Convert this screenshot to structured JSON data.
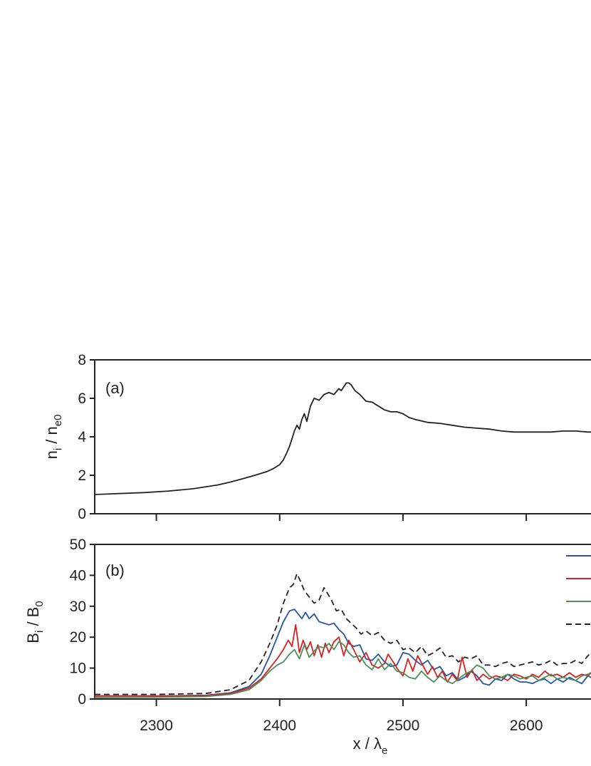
{
  "chart_data": [
    {
      "type": "line",
      "panel_label": "(a)",
      "ylabel": {
        "main": "n",
        "sub": "i",
        "mid": " / n",
        "sub2": "e0"
      },
      "xlim": [
        2250,
        2660
      ],
      "ylim": [
        0,
        8
      ],
      "yticks": [
        0,
        2,
        4,
        6,
        8
      ],
      "xticks": [
        2300,
        2400,
        2500,
        2600
      ],
      "series": [
        {
          "color": "#222222",
          "dash": "",
          "x": [
            2250,
            2270,
            2290,
            2310,
            2330,
            2350,
            2360,
            2370,
            2380,
            2390,
            2395,
            2400,
            2403,
            2406,
            2408,
            2410,
            2412,
            2414,
            2416,
            2418,
            2420,
            2422,
            2425,
            2428,
            2432,
            2436,
            2440,
            2444,
            2448,
            2450,
            2452,
            2454,
            2456,
            2458,
            2461,
            2465,
            2470,
            2475,
            2480,
            2485,
            2490,
            2495,
            2500,
            2505,
            2510,
            2520,
            2530,
            2540,
            2550,
            2560,
            2570,
            2580,
            2590,
            2600,
            2610,
            2620,
            2630,
            2640,
            2650,
            2660
          ],
          "y": [
            1.0,
            1.05,
            1.1,
            1.18,
            1.3,
            1.5,
            1.65,
            1.82,
            2.0,
            2.2,
            2.35,
            2.55,
            2.8,
            3.2,
            3.5,
            3.9,
            4.3,
            4.6,
            4.4,
            4.9,
            5.2,
            4.8,
            5.6,
            6.0,
            5.9,
            6.2,
            6.3,
            6.2,
            6.5,
            6.4,
            6.6,
            6.8,
            6.8,
            6.7,
            6.4,
            6.2,
            5.85,
            5.8,
            5.6,
            5.4,
            5.3,
            5.3,
            5.2,
            5.0,
            4.9,
            4.75,
            4.7,
            4.6,
            4.5,
            4.45,
            4.4,
            4.3,
            4.25,
            4.25,
            4.25,
            4.25,
            4.3,
            4.3,
            4.25,
            4.25
          ]
        }
      ]
    },
    {
      "type": "line",
      "panel_label": "(b)",
      "xlabel": {
        "main": "x / ",
        "greek": "λ",
        "sub": "e"
      },
      "ylabel": {
        "main": "B",
        "sub": "i",
        "mid": " / B",
        "sub2": "0"
      },
      "xlim": [
        2250,
        2660
      ],
      "ylim": [
        0,
        50
      ],
      "yticks": [
        0,
        10,
        20,
        30,
        40,
        50
      ],
      "xticks": [
        2300,
        2400,
        2500,
        2600
      ],
      "series": [
        {
          "color": "#2255a4",
          "dash": "",
          "x": [
            2250,
            2300,
            2340,
            2360,
            2375,
            2385,
            2392,
            2398,
            2403,
            2408,
            2412,
            2415,
            2418,
            2421,
            2424,
            2428,
            2432,
            2436,
            2440,
            2444,
            2448,
            2452,
            2456,
            2460,
            2465,
            2470,
            2475,
            2480,
            2485,
            2490,
            2495,
            2500,
            2505,
            2510,
            2515,
            2520,
            2525,
            2530,
            2535,
            2540,
            2545,
            2550,
            2555,
            2560,
            2565,
            2570,
            2575,
            2580,
            2585,
            2590,
            2595,
            2600,
            2605,
            2610,
            2615,
            2620,
            2625,
            2630,
            2635,
            2640,
            2645,
            2650,
            2655,
            2660
          ],
          "y": [
            1.0,
            1.0,
            1.2,
            2.0,
            4.0,
            8.0,
            14.0,
            20.0,
            25.0,
            28.5,
            29.0,
            27.5,
            26.0,
            28.0,
            26.0,
            27.5,
            25.0,
            24.5,
            24.0,
            24.5,
            22.5,
            21.0,
            18.0,
            17.0,
            17.5,
            13.0,
            12.5,
            14.5,
            12.0,
            10.5,
            11.0,
            15.0,
            14.5,
            12.5,
            11.0,
            12.5,
            9.5,
            10.5,
            7.5,
            8.5,
            6.0,
            7.0,
            9.0,
            7.5,
            5.0,
            4.5,
            6.5,
            6.0,
            8.0,
            6.5,
            5.5,
            5.5,
            5.0,
            6.0,
            6.5,
            5.0,
            6.5,
            5.5,
            7.0,
            6.0,
            5.0,
            7.5,
            6.5,
            7.0
          ]
        },
        {
          "color": "#d82020",
          "dash": "",
          "x": [
            2250,
            2300,
            2340,
            2360,
            2375,
            2385,
            2392,
            2398,
            2403,
            2407,
            2410,
            2413,
            2416,
            2419,
            2422,
            2425,
            2428,
            2431,
            2434,
            2437,
            2440,
            2444,
            2448,
            2452,
            2456,
            2460,
            2465,
            2470,
            2475,
            2480,
            2485,
            2488,
            2492,
            2496,
            2500,
            2504,
            2508,
            2512,
            2516,
            2520,
            2524,
            2528,
            2532,
            2536,
            2540,
            2544,
            2548,
            2552,
            2556,
            2560,
            2565,
            2570,
            2575,
            2580,
            2585,
            2590,
            2595,
            2600,
            2605,
            2610,
            2615,
            2620,
            2625,
            2630,
            2635,
            2640,
            2645,
            2650,
            2655,
            2660
          ],
          "y": [
            1.0,
            1.0,
            1.1,
            1.8,
            3.5,
            6.5,
            10.0,
            13.0,
            16.0,
            19.0,
            17.0,
            24.0,
            15.0,
            19.0,
            16.0,
            18.5,
            14.0,
            17.5,
            13.5,
            18.0,
            15.0,
            18.5,
            20.0,
            14.0,
            19.0,
            16.0,
            12.0,
            15.0,
            11.0,
            10.0,
            11.5,
            14.5,
            12.0,
            9.5,
            7.5,
            13.0,
            9.0,
            14.0,
            11.0,
            8.0,
            10.5,
            7.0,
            9.0,
            5.5,
            8.0,
            6.0,
            13.5,
            7.0,
            9.5,
            6.0,
            8.0,
            6.5,
            7.5,
            7.0,
            6.0,
            8.0,
            7.5,
            6.5,
            8.0,
            7.0,
            9.0,
            7.5,
            8.0,
            7.0,
            8.5,
            7.0,
            8.0,
            7.5,
            9.5,
            8.0
          ]
        },
        {
          "color": "#4a8e5a",
          "dash": "",
          "x": [
            2250,
            2300,
            2340,
            2360,
            2375,
            2385,
            2392,
            2398,
            2403,
            2408,
            2412,
            2416,
            2420,
            2424,
            2428,
            2432,
            2436,
            2440,
            2444,
            2448,
            2452,
            2456,
            2460,
            2465,
            2470,
            2475,
            2480,
            2485,
            2490,
            2495,
            2500,
            2505,
            2510,
            2515,
            2520,
            2525,
            2530,
            2535,
            2540,
            2545,
            2550,
            2555,
            2560,
            2565,
            2570,
            2575,
            2580,
            2585,
            2590,
            2595,
            2600,
            2605,
            2610,
            2615,
            2620,
            2625,
            2630,
            2635,
            2640,
            2645,
            2650,
            2655,
            2660
          ],
          "y": [
            0.5,
            0.6,
            0.8,
            1.5,
            3.0,
            6.0,
            9.0,
            11.0,
            12.0,
            14.5,
            16.0,
            13.0,
            17.5,
            13.5,
            15.5,
            17.0,
            16.5,
            18.0,
            16.0,
            18.5,
            17.5,
            15.0,
            13.5,
            14.0,
            11.0,
            9.5,
            13.0,
            9.5,
            11.5,
            9.0,
            8.5,
            7.0,
            6.5,
            9.0,
            7.0,
            5.5,
            7.5,
            6.0,
            5.0,
            6.5,
            8.0,
            9.0,
            11.0,
            10.0,
            7.5,
            6.5,
            7.0,
            8.0,
            7.5,
            6.5,
            7.0,
            7.5,
            6.0,
            7.0,
            8.0,
            6.5,
            7.0,
            6.5,
            6.0,
            7.5,
            8.0,
            9.0,
            8.0
          ]
        },
        {
          "color": "#222222",
          "dash": "8,5",
          "x": [
            2250,
            2300,
            2340,
            2360,
            2375,
            2385,
            2392,
            2398,
            2403,
            2408,
            2411,
            2414,
            2417,
            2420,
            2424,
            2428,
            2432,
            2436,
            2439,
            2442,
            2446,
            2450,
            2454,
            2458,
            2462,
            2466,
            2470,
            2475,
            2480,
            2485,
            2490,
            2495,
            2500,
            2505,
            2510,
            2515,
            2520,
            2525,
            2530,
            2535,
            2540,
            2545,
            2550,
            2555,
            2560,
            2565,
            2570,
            2575,
            2580,
            2585,
            2590,
            2595,
            2600,
            2605,
            2610,
            2615,
            2620,
            2625,
            2630,
            2635,
            2640,
            2645,
            2650,
            2655,
            2660
          ],
          "y": [
            1.5,
            1.5,
            1.8,
            3.0,
            6.0,
            12.0,
            18.0,
            24.0,
            31.0,
            36.0,
            37.0,
            40.5,
            38.0,
            35.0,
            33.0,
            31.0,
            32.0,
            36.0,
            34.0,
            32.0,
            28.5,
            29.0,
            26.0,
            24.5,
            23.0,
            21.0,
            22.0,
            20.5,
            21.5,
            19.0,
            18.0,
            19.0,
            16.0,
            16.5,
            15.0,
            17.0,
            14.0,
            15.0,
            16.5,
            13.5,
            14.0,
            12.0,
            13.5,
            13.0,
            14.0,
            11.0,
            11.0,
            10.5,
            11.5,
            12.0,
            10.5,
            11.0,
            11.5,
            12.0,
            11.0,
            11.5,
            12.5,
            11.0,
            11.5,
            11.5,
            12.5,
            11.5,
            14.0,
            16.0,
            14.5
          ]
        }
      ]
    }
  ]
}
